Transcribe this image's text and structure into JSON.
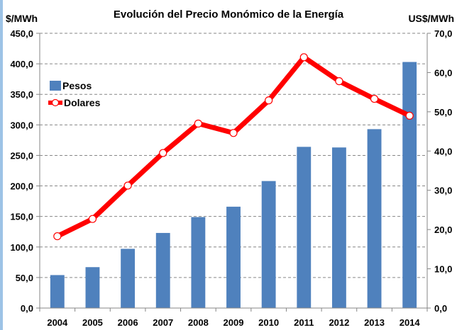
{
  "chart_data": {
    "type": "bar+line",
    "title": "Evolución del Precio Monómico de la Energía",
    "ylabel_left": "$/MWh",
    "ylabel_right": "US$/MWh",
    "categories": [
      "2004",
      "2005",
      "2006",
      "2007",
      "2008",
      "2009",
      "2010",
      "2011",
      "2012",
      "2013",
      "2014"
    ],
    "series": [
      {
        "name": "Pesos",
        "type": "bar",
        "axis": "left",
        "color": "#4f81bd",
        "values": [
          54,
          67,
          97,
          123,
          149,
          166,
          208,
          264,
          263,
          293,
          403
        ]
      },
      {
        "name": "Dolares",
        "type": "line",
        "axis": "right",
        "color": "#ff0000",
        "values": [
          18.3,
          22.7,
          31.2,
          39.5,
          47.0,
          44.6,
          52.9,
          63.9,
          57.8,
          53.3,
          49.0
        ]
      }
    ],
    "ylim_left": [
      0,
      450
    ],
    "ylim_right": [
      0,
      70
    ],
    "yticks_left": [
      "0,0",
      "50,0",
      "100,0",
      "150,0",
      "200,0",
      "250,0",
      "300,0",
      "350,0",
      "400,0",
      "450,0"
    ],
    "yticks_right": [
      "0,0",
      "10,0",
      "20,0",
      "30,0",
      "40,0",
      "50,0",
      "60,0",
      "70,0"
    ],
    "grid": "horizontal dashed",
    "legend": "upper-left"
  }
}
